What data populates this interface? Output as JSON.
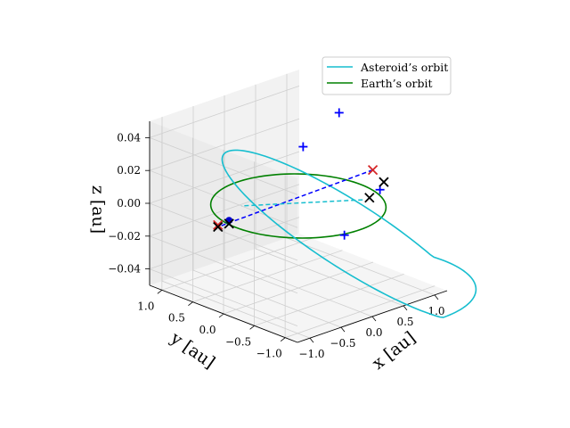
{
  "chart_data": {
    "type": "line",
    "projection": "3d",
    "xlabel": "x [au]",
    "ylabel": "y [au]",
    "zlabel": "z [au]",
    "xlim": [
      -1.2,
      1.2
    ],
    "ylim": [
      -1.2,
      1.2
    ],
    "zlim": [
      -0.05,
      0.05
    ],
    "xticks": [
      "−1.0",
      "−0.5",
      "0.0",
      "0.5",
      "1.0"
    ],
    "yticks": [
      "1.0",
      "0.5",
      "0.0",
      "−0.5",
      "−1.0"
    ],
    "zticks": [
      "0.04",
      "0.02",
      "0.00",
      "−0.02",
      "−0.04"
    ],
    "grid": true,
    "legend_position": "top-right",
    "series": [
      {
        "name": "Asteroid’s orbit",
        "color": "#17becf",
        "style": "solid",
        "kind": "ellipse",
        "semi_major_au": 1.45,
        "eccentricity": 0.4,
        "inclination_deg": 3,
        "perihelion_au": 0.87
      },
      {
        "name": "Earth’s orbit",
        "color": "#008000",
        "style": "solid",
        "kind": "circle",
        "radius_au": 1.0
      }
    ],
    "markers": {
      "blue_plus": [
        [
          0.95,
          0.3,
          0.04
        ],
        [
          0.62,
          0.55,
          0.02
        ],
        [
          0.4,
          -0.92,
          0.018
        ],
        [
          -0.25,
          -1.0,
          0.0
        ]
      ],
      "red_x": [
        [
          0.7,
          -0.5,
          0.02
        ],
        [
          -0.45,
          0.85,
          -0.018
        ]
      ],
      "black_x": [
        [
          0.6,
          -0.78,
          0.018
        ],
        [
          0.35,
          -0.8,
          0.012
        ],
        [
          -0.4,
          0.72,
          -0.016
        ],
        [
          -0.42,
          0.88,
          -0.02
        ]
      ],
      "blue_dot": [
        [
          -0.4,
          0.72,
          -0.014
        ]
      ]
    },
    "connector_dashed_blue": [
      [
        0.7,
        -0.5,
        0.02
      ],
      [
        -0.42,
        0.88,
        -0.02
      ]
    ],
    "connector_dashed_cyan": [
      [
        0.32,
        -0.72,
        0.01
      ],
      [
        -0.3,
        0.62,
        -0.005
      ]
    ]
  }
}
